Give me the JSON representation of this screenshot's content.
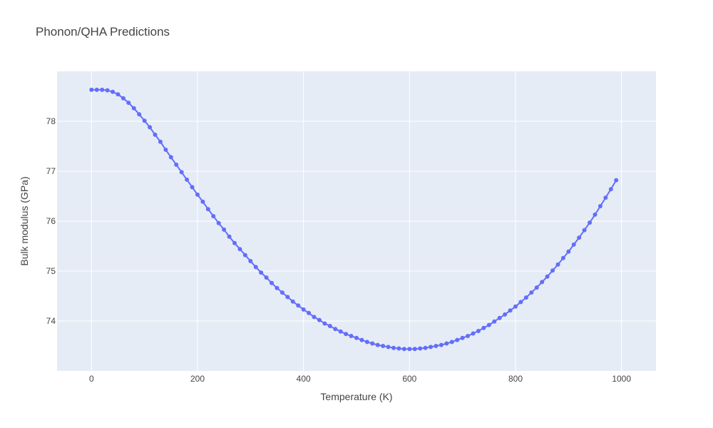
{
  "chart_data": {
    "type": "line",
    "title": "Phonon/QHA Predictions",
    "xlabel": "Temperature (K)",
    "ylabel": "Bulk modulus (GPa)",
    "xlim": [
      -65,
      1065
    ],
    "ylim": [
      73.0,
      79.0
    ],
    "x_ticks": [
      0,
      200,
      400,
      600,
      800,
      1000
    ],
    "y_ticks": [
      74,
      75,
      76,
      77,
      78
    ],
    "x_tick_labels": [
      "0",
      "200",
      "400",
      "600",
      "800",
      "1000"
    ],
    "y_tick_labels": [
      "74",
      "75",
      "76",
      "77",
      "78"
    ],
    "grid": true,
    "legend": "none",
    "series": [
      {
        "color": "#636efa",
        "mode": "lines+markers",
        "x": [
          0,
          10,
          20,
          30,
          40,
          50,
          60,
          70,
          80,
          90,
          100,
          110,
          120,
          130,
          140,
          150,
          160,
          170,
          180,
          190,
          200,
          210,
          220,
          230,
          240,
          250,
          260,
          270,
          280,
          290,
          300,
          310,
          320,
          330,
          340,
          350,
          360,
          370,
          380,
          390,
          400,
          410,
          420,
          430,
          440,
          450,
          460,
          470,
          480,
          490,
          500,
          510,
          520,
          530,
          540,
          550,
          560,
          570,
          580,
          590,
          600,
          610,
          620,
          630,
          640,
          650,
          660,
          670,
          680,
          690,
          700,
          710,
          720,
          730,
          740,
          750,
          760,
          770,
          780,
          790,
          800,
          810,
          820,
          830,
          840,
          850,
          860,
          870,
          880,
          890,
          900,
          910,
          920,
          930,
          940,
          950,
          960,
          970,
          980,
          990
        ],
        "y": [
          78.63,
          78.63,
          78.63,
          78.62,
          78.59,
          78.54,
          78.46,
          78.37,
          78.26,
          78.14,
          78.01,
          77.88,
          77.73,
          77.59,
          77.43,
          77.28,
          77.13,
          76.98,
          76.83,
          76.68,
          76.53,
          76.39,
          76.24,
          76.1,
          75.96,
          75.83,
          75.69,
          75.56,
          75.44,
          75.32,
          75.2,
          75.08,
          74.97,
          74.87,
          74.76,
          74.66,
          74.57,
          74.48,
          74.39,
          74.31,
          74.23,
          74.16,
          74.08,
          74.02,
          73.95,
          73.9,
          73.84,
          73.79,
          73.74,
          73.7,
          73.66,
          73.62,
          73.58,
          73.55,
          73.52,
          73.5,
          73.48,
          73.46,
          73.45,
          73.44,
          73.44,
          73.44,
          73.45,
          73.46,
          73.48,
          73.5,
          73.52,
          73.55,
          73.58,
          73.62,
          73.66,
          73.7,
          73.75,
          73.8,
          73.86,
          73.92,
          73.99,
          74.06,
          74.13,
          74.21,
          74.29,
          74.38,
          74.47,
          74.57,
          74.67,
          74.78,
          74.89,
          75.01,
          75.13,
          75.26,
          75.39,
          75.53,
          75.67,
          75.82,
          75.97,
          76.13,
          76.3,
          76.47,
          76.64,
          76.82
        ]
      }
    ]
  },
  "colors": {
    "plot_background": "#e5ecf6",
    "grid": "#ffffff",
    "line": "#636efa",
    "text": "#444444"
  }
}
